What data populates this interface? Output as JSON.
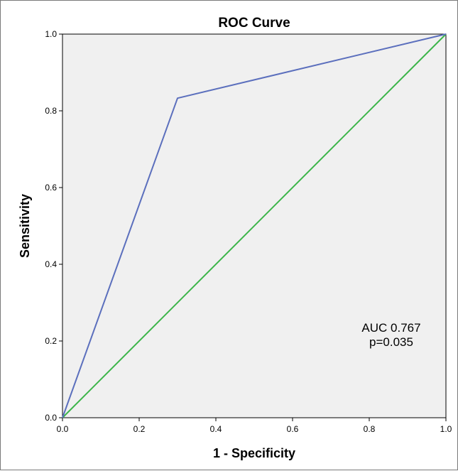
{
  "chart_data": {
    "type": "line",
    "title": "ROC Curve",
    "xlabel": "1 - Specificity",
    "ylabel": "Sensitivity",
    "xlim": [
      0,
      1
    ],
    "ylim": [
      0,
      1
    ],
    "xticks": [
      "0.0",
      "0.2",
      "0.4",
      "0.6",
      "0.8",
      "1.0"
    ],
    "yticks": [
      "0.0",
      "0.2",
      "0.4",
      "0.6",
      "0.8",
      "1.0"
    ],
    "grid": false,
    "background_color": "#f0f0f0",
    "series": [
      {
        "color": "#5b6fbd",
        "x": [
          0.0,
          0.3,
          1.0
        ],
        "y": [
          0.0,
          0.833,
          1.0
        ]
      },
      {
        "color": "#3cb54a",
        "x": [
          0.0,
          1.0
        ],
        "y": [
          0.0,
          1.0
        ]
      }
    ],
    "annotations": [
      "AUC 0.767",
      "p=0.035"
    ]
  }
}
